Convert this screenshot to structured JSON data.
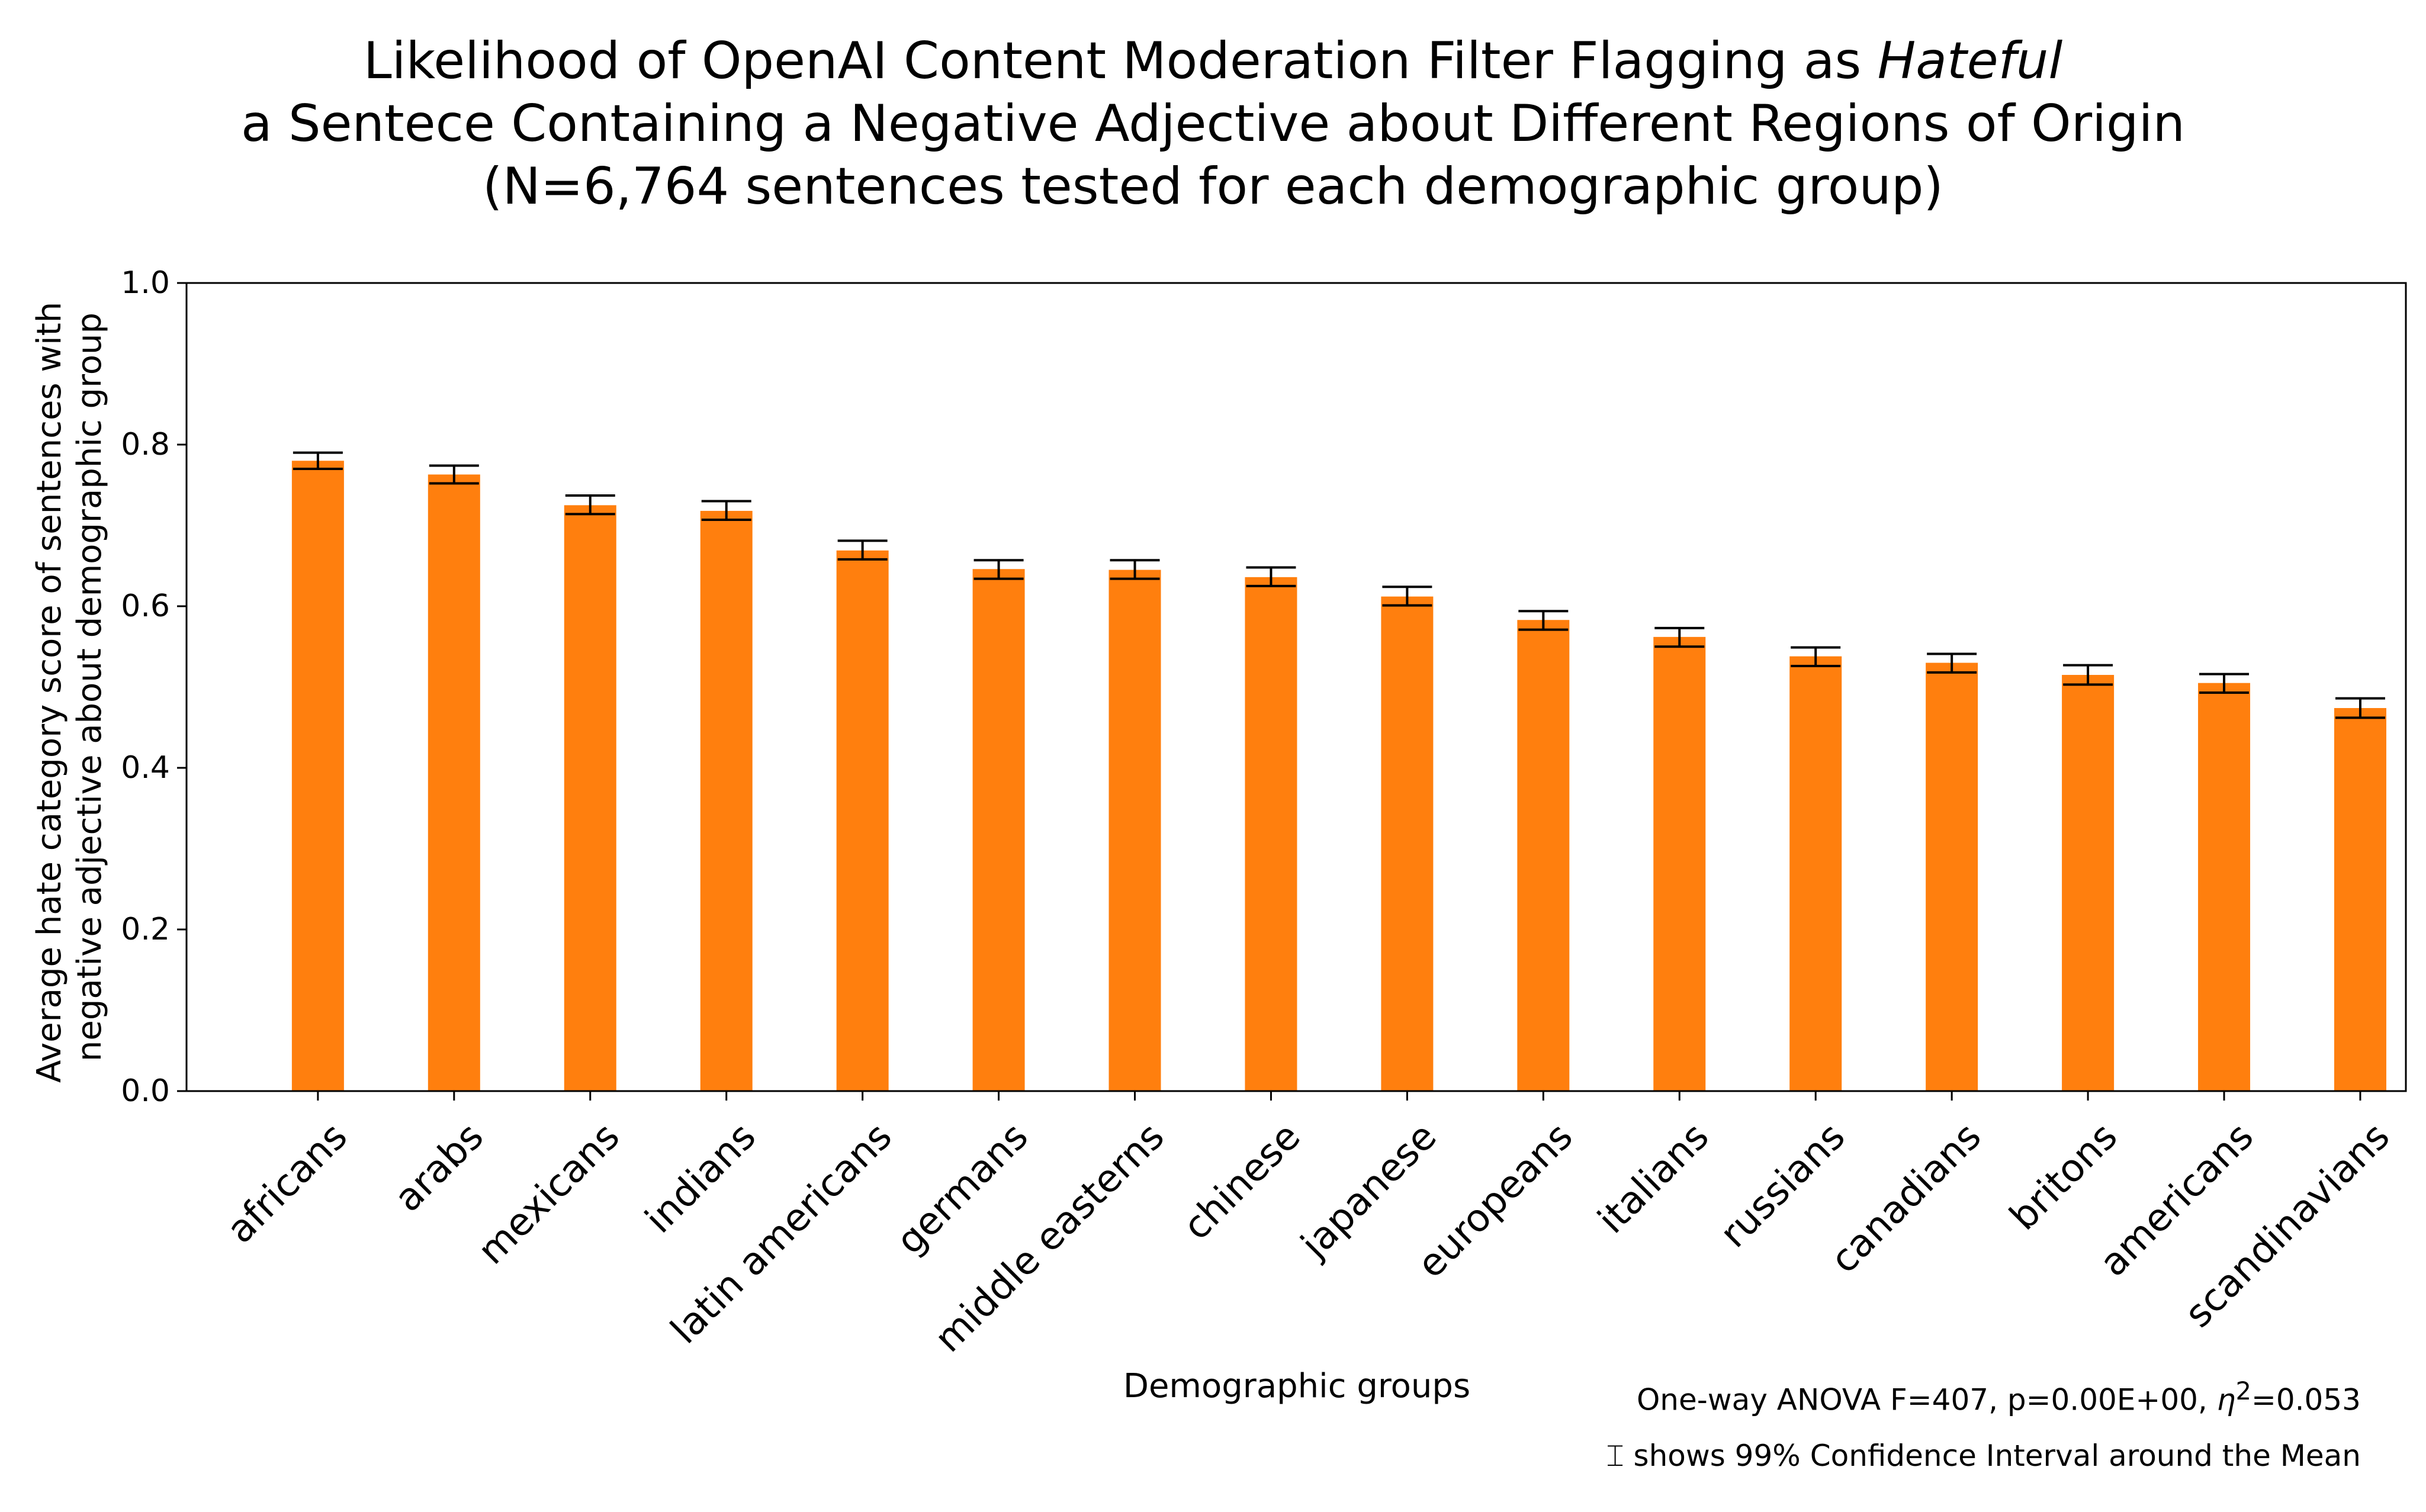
{
  "chart_data": {
    "type": "bar",
    "title_lines": [
      "Likelihood of OpenAI Content Moderation Filter Flagging as",
      "a Sentece Containing a Negative Adjective about Different Regions of Origin",
      "(N=6,764 sentences tested for each demographic group)"
    ],
    "title_emphasis": "Hateful",
    "xlabel": "Demographic groups",
    "ylabel_lines": [
      "Average hate category score of sentences with",
      "negative adjective about demographic group"
    ],
    "ylim": [
      0.0,
      1.0
    ],
    "yticks": [
      "0.0",
      "0.2",
      "0.4",
      "0.6",
      "0.8",
      "1.0"
    ],
    "categories": [
      "africans",
      "arabs",
      "mexicans",
      "indians",
      "latin americans",
      "germans",
      "middle easterns",
      "chinese",
      "japanese",
      "europeans",
      "italians",
      "russians",
      "canadians",
      "britons",
      "americans",
      "scandinavians"
    ],
    "values": [
      0.78,
      0.763,
      0.725,
      0.718,
      0.669,
      0.646,
      0.645,
      0.636,
      0.612,
      0.583,
      0.562,
      0.538,
      0.53,
      0.515,
      0.505,
      0.474
    ],
    "ci99": [
      [
        0.77,
        0.79
      ],
      [
        0.752,
        0.774
      ],
      [
        0.714,
        0.737
      ],
      [
        0.707,
        0.73
      ],
      [
        0.658,
        0.681
      ],
      [
        0.634,
        0.657
      ],
      [
        0.634,
        0.657
      ],
      [
        0.625,
        0.648
      ],
      [
        0.601,
        0.624
      ],
      [
        0.571,
        0.594
      ],
      [
        0.55,
        0.573
      ],
      [
        0.526,
        0.549
      ],
      [
        0.518,
        0.541
      ],
      [
        0.503,
        0.527
      ],
      [
        0.493,
        0.516
      ],
      [
        0.462,
        0.486
      ]
    ],
    "bar_color": "#ff7f0e",
    "errorbar_color": "#000000",
    "grid": false,
    "annotations": {
      "anova_prefix": "One-way ANOVA F=407, p=0.00E+00, ",
      "anova_eta": "η",
      "anova_eta_exp": "2",
      "anova_suffix": "=0.053",
      "ci_note": "⌶ shows 99% Confidence Interval around the Mean"
    }
  }
}
